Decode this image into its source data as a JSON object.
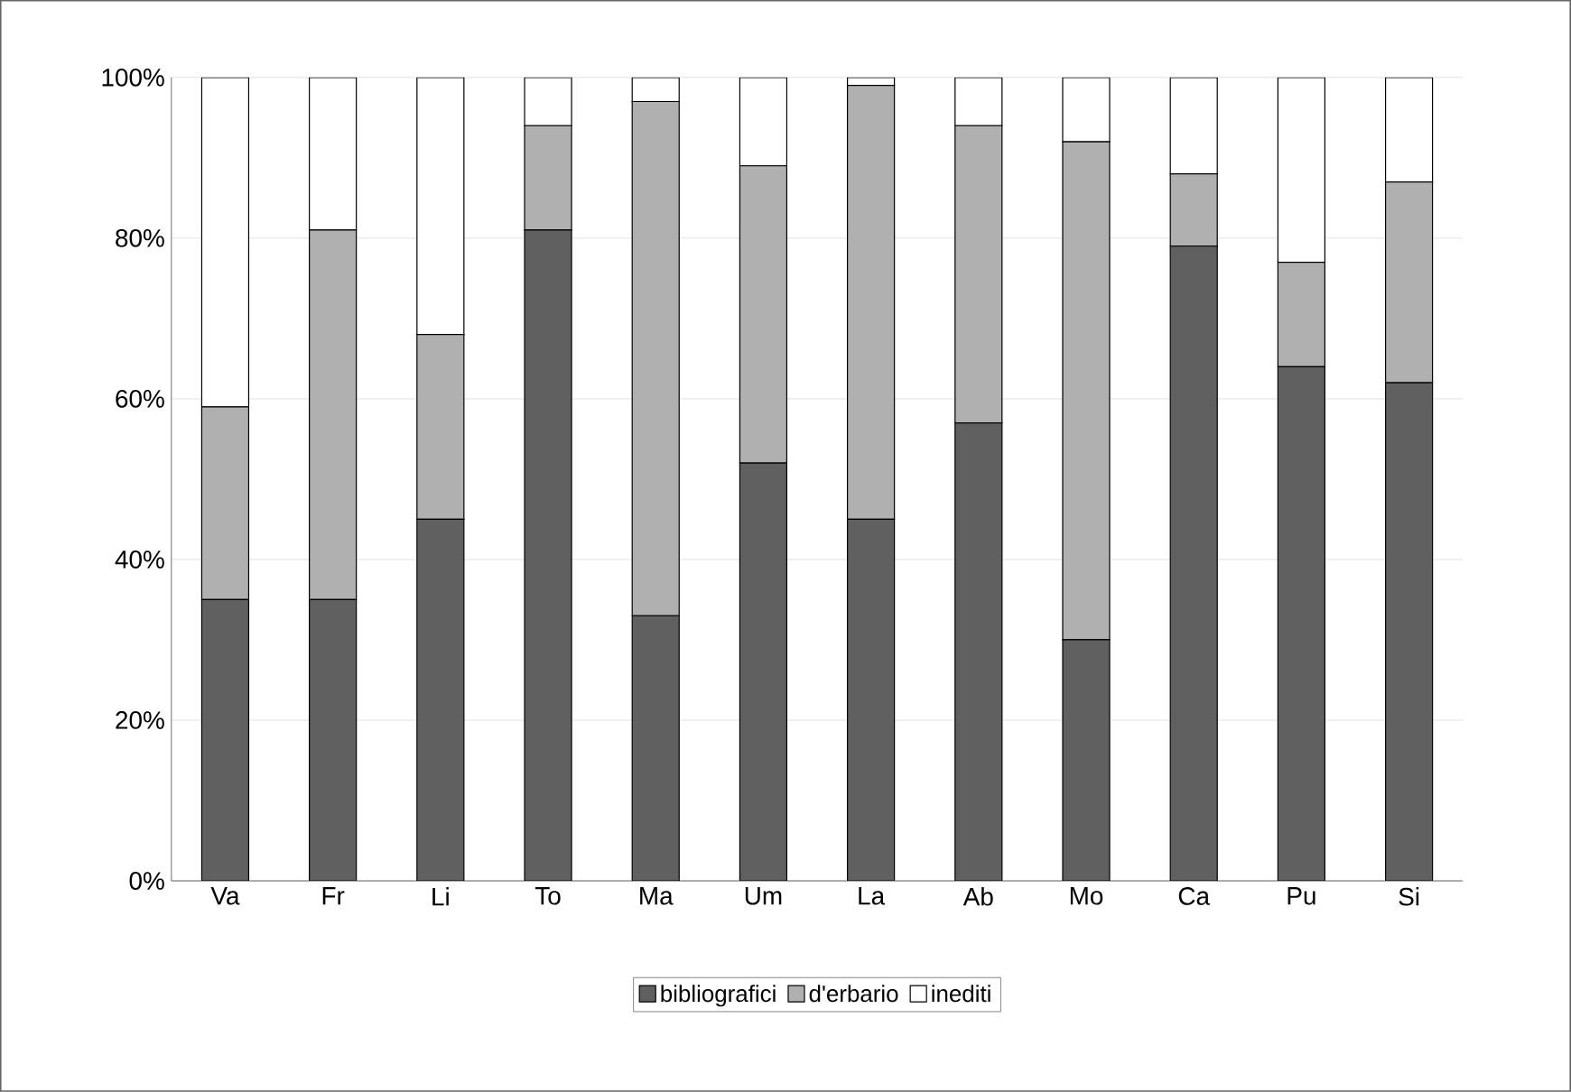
{
  "chart_data": {
    "type": "bar",
    "stacked": true,
    "categories": [
      "Va",
      "Fr",
      "Li",
      "To",
      "Ma",
      "Um",
      "La",
      "Ab",
      "Mo",
      "Ca",
      "Pu",
      "Si"
    ],
    "series": [
      {
        "name": "bibliografici",
        "color": "#606060",
        "values": [
          35,
          35,
          45,
          81,
          33,
          52,
          45,
          57,
          30,
          79,
          64,
          62
        ]
      },
      {
        "name": "d'erbario",
        "color": "#b0b0b0",
        "values": [
          24,
          46,
          23,
          13,
          64,
          37,
          54,
          37,
          62,
          9,
          13,
          25
        ]
      },
      {
        "name": "inediti",
        "color": "#ffffff",
        "values": [
          41,
          19,
          32,
          6,
          3,
          11,
          1,
          6,
          8,
          12,
          23,
          13
        ]
      }
    ],
    "ylim": [
      0,
      100
    ],
    "yticks": [
      {
        "value": 0,
        "label": "0%"
      },
      {
        "value": 20,
        "label": "20%"
      },
      {
        "value": 40,
        "label": "40%"
      },
      {
        "value": 60,
        "label": "60%"
      },
      {
        "value": 80,
        "label": "80%"
      },
      {
        "value": 100,
        "label": "100%"
      }
    ],
    "grid": "y",
    "legend": "bottom"
  }
}
